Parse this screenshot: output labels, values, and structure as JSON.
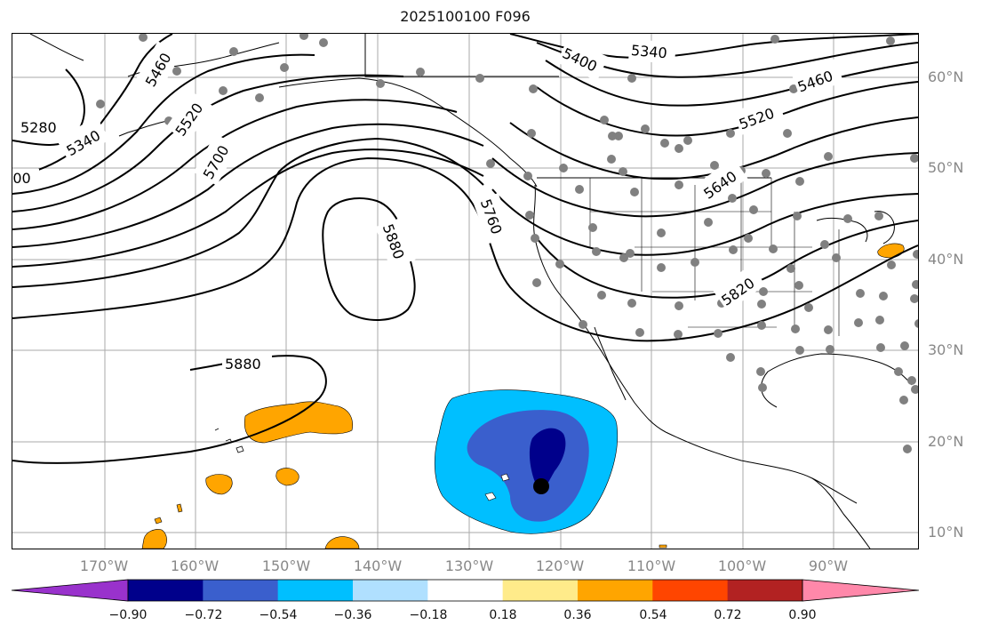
{
  "title": "2025100100 F096",
  "lat_labels": [
    {
      "text": "60°N",
      "lat": 60
    },
    {
      "text": "50°N",
      "lat": 50
    },
    {
      "text": "40°N",
      "lat": 40
    },
    {
      "text": "30°N",
      "lat": 30
    },
    {
      "text": "20°N",
      "lat": 20
    },
    {
      "text": "10°N",
      "lat": 10
    }
  ],
  "lon_labels": [
    {
      "text": "170°W",
      "lon": -170
    },
    {
      "text": "160°W",
      "lon": -160
    },
    {
      "text": "150°W",
      "lon": -150
    },
    {
      "text": "140°W",
      "lon": -140
    },
    {
      "text": "130°W",
      "lon": -130
    },
    {
      "text": "120°W",
      "lon": -120
    },
    {
      "text": "110°W",
      "lon": -110
    },
    {
      "text": "100°W",
      "lon": -100
    },
    {
      "text": "90°W",
      "lon": -90
    }
  ],
  "contour_labels": [
    "5280",
    "5340",
    "5400",
    "5460",
    "5520",
    "5640",
    "5700",
    "5760",
    "5820",
    "5880"
  ],
  "colorbar": {
    "colors": [
      "#9932cc",
      "#00008b",
      "#3a5fcd",
      "#00bfff",
      "#b0e0ff",
      "#ffffff",
      "#ffeb8a",
      "#ffa500",
      "#ff4500",
      "#b22222",
      "#ff88aa"
    ],
    "ticks": [
      "−0.90",
      "−0.72",
      "−0.54",
      "−0.36",
      "−0.18",
      "0.18",
      "0.36",
      "0.54",
      "0.72",
      "0.90"
    ]
  },
  "colors": {
    "gridline": "#aaaaaa",
    "station_dot": "#808080",
    "label_gray": "#888888"
  }
}
